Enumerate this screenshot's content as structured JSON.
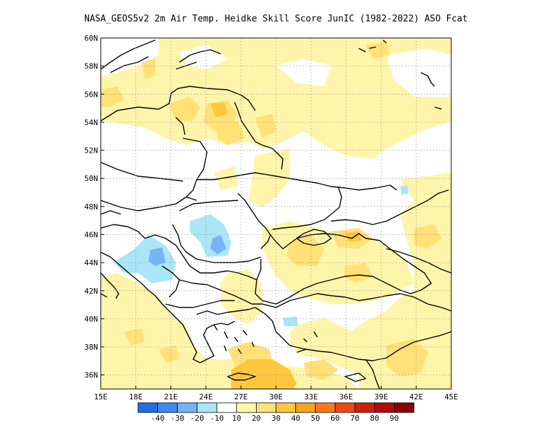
{
  "title": "NASA_GEOS5v2  2m Air Temp. Heidke Skill Score JunIC (1982-2022) ASO Fcat",
  "map": {
    "lon_range": [
      15,
      45
    ],
    "lat_range": [
      35,
      60
    ],
    "x_ticks": [
      "15E",
      "18E",
      "21E",
      "24E",
      "27E",
      "30E",
      "33E",
      "36E",
      "39E",
      "42E",
      "45E"
    ],
    "y_ticks": [
      "36N",
      "38N",
      "40N",
      "42N",
      "44N",
      "46N",
      "48N",
      "50N",
      "52N",
      "54N",
      "56N",
      "58N",
      "60N"
    ],
    "grid": "dotted"
  },
  "colorbar": {
    "labels": [
      "-40",
      "-30",
      "-20",
      "-10",
      "10",
      "20",
      "30",
      "40",
      "50",
      "60",
      "70",
      "80",
      "90"
    ],
    "colors": [
      "#1e6ee6",
      "#3c8cf0",
      "#78b4f5",
      "#aae6f5",
      "#ffffff",
      "#fff5aa",
      "#ffe178",
      "#ffc83c",
      "#ffa01e",
      "#ff781e",
      "#f04614",
      "#d21e0a",
      "#b40a0a",
      "#8c0000"
    ]
  }
}
